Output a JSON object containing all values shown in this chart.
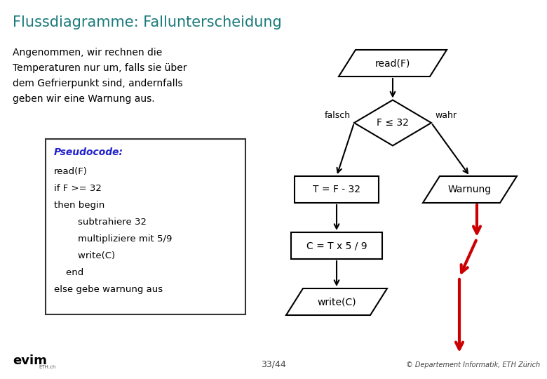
{
  "title": "Flussdiagramme: Fallunterscheidung",
  "title_color": "#1A7A7A",
  "bg_color": "#FFFFFF",
  "description_lines": [
    "Angenommen, wir rechnen die",
    "Temperaturen nur um, falls sie über",
    "dem Gefrierpunkt sind, andernfalls",
    "geben wir eine Warnung aus."
  ],
  "pseudocode_title": "Pseudocode:",
  "pseudocode_lines": [
    "read(F)",
    "if F >= 32",
    "then begin",
    "        subtrahiere 32",
    "        multipliziere mit 5/9",
    "        write(C)",
    "    end",
    "else gebe warnung aus"
  ],
  "footer_left": "33/44",
  "footer_right": "© Departement Informatik, ETH Zürich",
  "arrow_color": "#000000",
  "red_arrow_color": "#CC0000",
  "node_line_color": "#000000",
  "node_fill_color": "#FFFFFF",
  "fig_w": 7.8,
  "fig_h": 5.4
}
